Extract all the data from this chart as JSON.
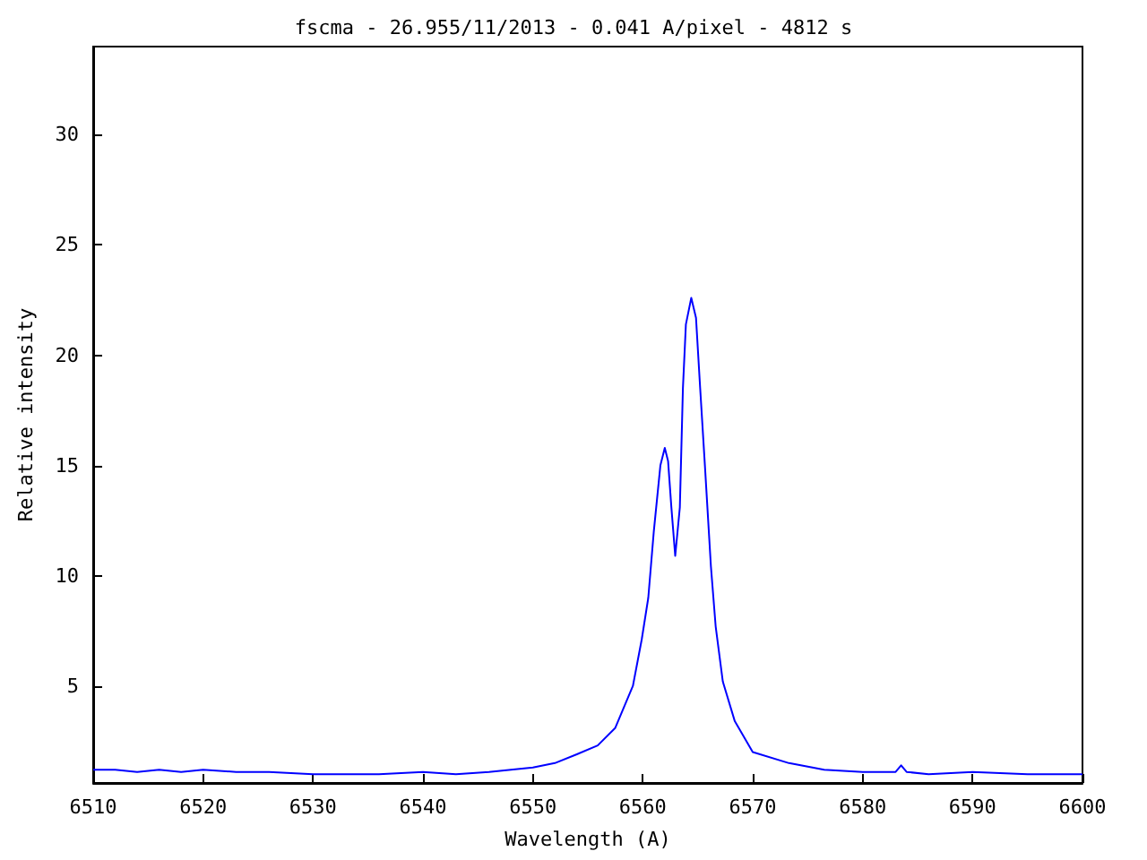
{
  "chart_data": {
    "type": "line",
    "title": "fscma - 26.955/11/2013 - 0.041 A/pixel - 4812 s",
    "xlabel": "Wavelength (A)",
    "ylabel": "Relative intensity",
    "xlim": [
      6510,
      6600
    ],
    "xticks": [
      6510,
      6520,
      6530,
      6540,
      6550,
      6560,
      6570,
      6580,
      6590,
      6600
    ],
    "ylim": [
      0.6,
      34
    ],
    "yticks": [
      5,
      10,
      15,
      20,
      25,
      30
    ],
    "grid": false,
    "marker": "none",
    "line_style": "solid",
    "series": [
      {
        "color": "#0000ff",
        "x": [
          6510,
          6512,
          6514,
          6516,
          6518,
          6520,
          6523,
          6526,
          6530,
          6533,
          6536,
          6540,
          6543,
          6546,
          6548,
          6550,
          6552,
          6554,
          6555.9,
          6557.5,
          6559.1,
          6559.9,
          6560.5,
          6561.0,
          6561.6,
          6562.0,
          6562.3,
          6562.6,
          6562.95,
          6563.37,
          6563.65,
          6563.92,
          6564.41,
          6564.84,
          6565.22,
          6565.65,
          6566.2,
          6566.63,
          6567.28,
          6568.37,
          6570,
          6573.3,
          6576.5,
          6580,
          6583,
          6583.5,
          6584,
          6586,
          6590,
          6595,
          6600
        ],
        "values": [
          1.2,
          1.2,
          1.1,
          1.2,
          1.1,
          1.2,
          1.1,
          1.1,
          1.0,
          1.0,
          1.0,
          1.1,
          1.0,
          1.1,
          1.2,
          1.3,
          1.5,
          1.9,
          2.3,
          3.1,
          5.0,
          7.1,
          9.0,
          12.0,
          15.0,
          15.8,
          15.2,
          13.1,
          10.9,
          13.1,
          18.5,
          21.4,
          22.6,
          21.7,
          18.5,
          15.0,
          10.4,
          7.7,
          5.2,
          3.4,
          2.0,
          1.5,
          1.2,
          1.1,
          1.1,
          1.4,
          1.1,
          1.0,
          1.1,
          1.0,
          1.0
        ]
      }
    ]
  }
}
